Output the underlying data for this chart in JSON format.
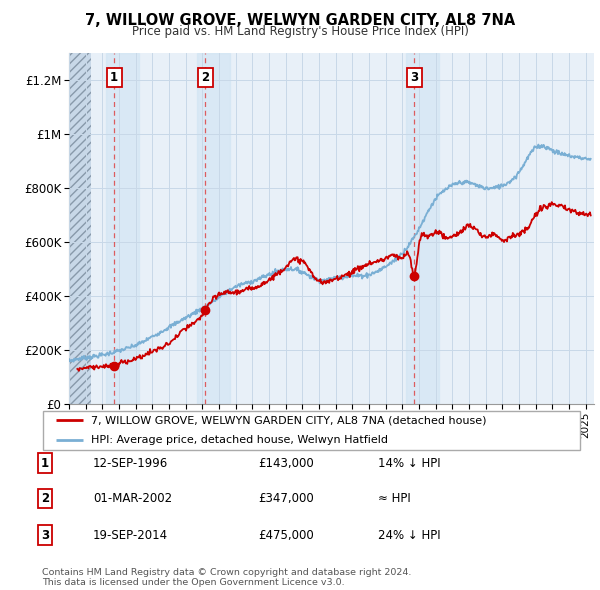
{
  "title": "7, WILLOW GROVE, WELWYN GARDEN CITY, AL8 7NA",
  "subtitle": "Price paid vs. HM Land Registry's House Price Index (HPI)",
  "ylim": [
    0,
    1300000
  ],
  "yticks": [
    0,
    200000,
    400000,
    600000,
    800000,
    1000000,
    1200000
  ],
  "ytick_labels": [
    "£0",
    "£200K",
    "£400K",
    "£600K",
    "£800K",
    "£1M",
    "£1.2M"
  ],
  "xlim_start": 1994.0,
  "xlim_end": 2025.5,
  "sale_dates": [
    1996.71,
    2002.17,
    2014.72
  ],
  "sale_prices": [
    143000,
    347000,
    475000
  ],
  "sale_labels": [
    "1",
    "2",
    "3"
  ],
  "legend_red_label": "7, WILLOW GROVE, WELWYN GARDEN CITY, AL8 7NA (detached house)",
  "legend_blue_label": "HPI: Average price, detached house, Welwyn Hatfield",
  "table_rows": [
    {
      "num": "1",
      "date": "12-SEP-1996",
      "price": "£143,000",
      "rel": "14% ↓ HPI"
    },
    {
      "num": "2",
      "date": "01-MAR-2002",
      "price": "£347,000",
      "rel": "≈ HPI"
    },
    {
      "num": "3",
      "date": "19-SEP-2014",
      "price": "£475,000",
      "rel": "24% ↓ HPI"
    }
  ],
  "footer": "Contains HM Land Registry data © Crown copyright and database right 2024.\nThis data is licensed under the Open Government Licence v3.0.",
  "red_color": "#cc0000",
  "blue_color": "#7aafd4",
  "grid_color": "#c8d8e8",
  "bg_blue": "#e8f0f8",
  "dashed_color": "#dd4444",
  "background_color": "#ffffff"
}
